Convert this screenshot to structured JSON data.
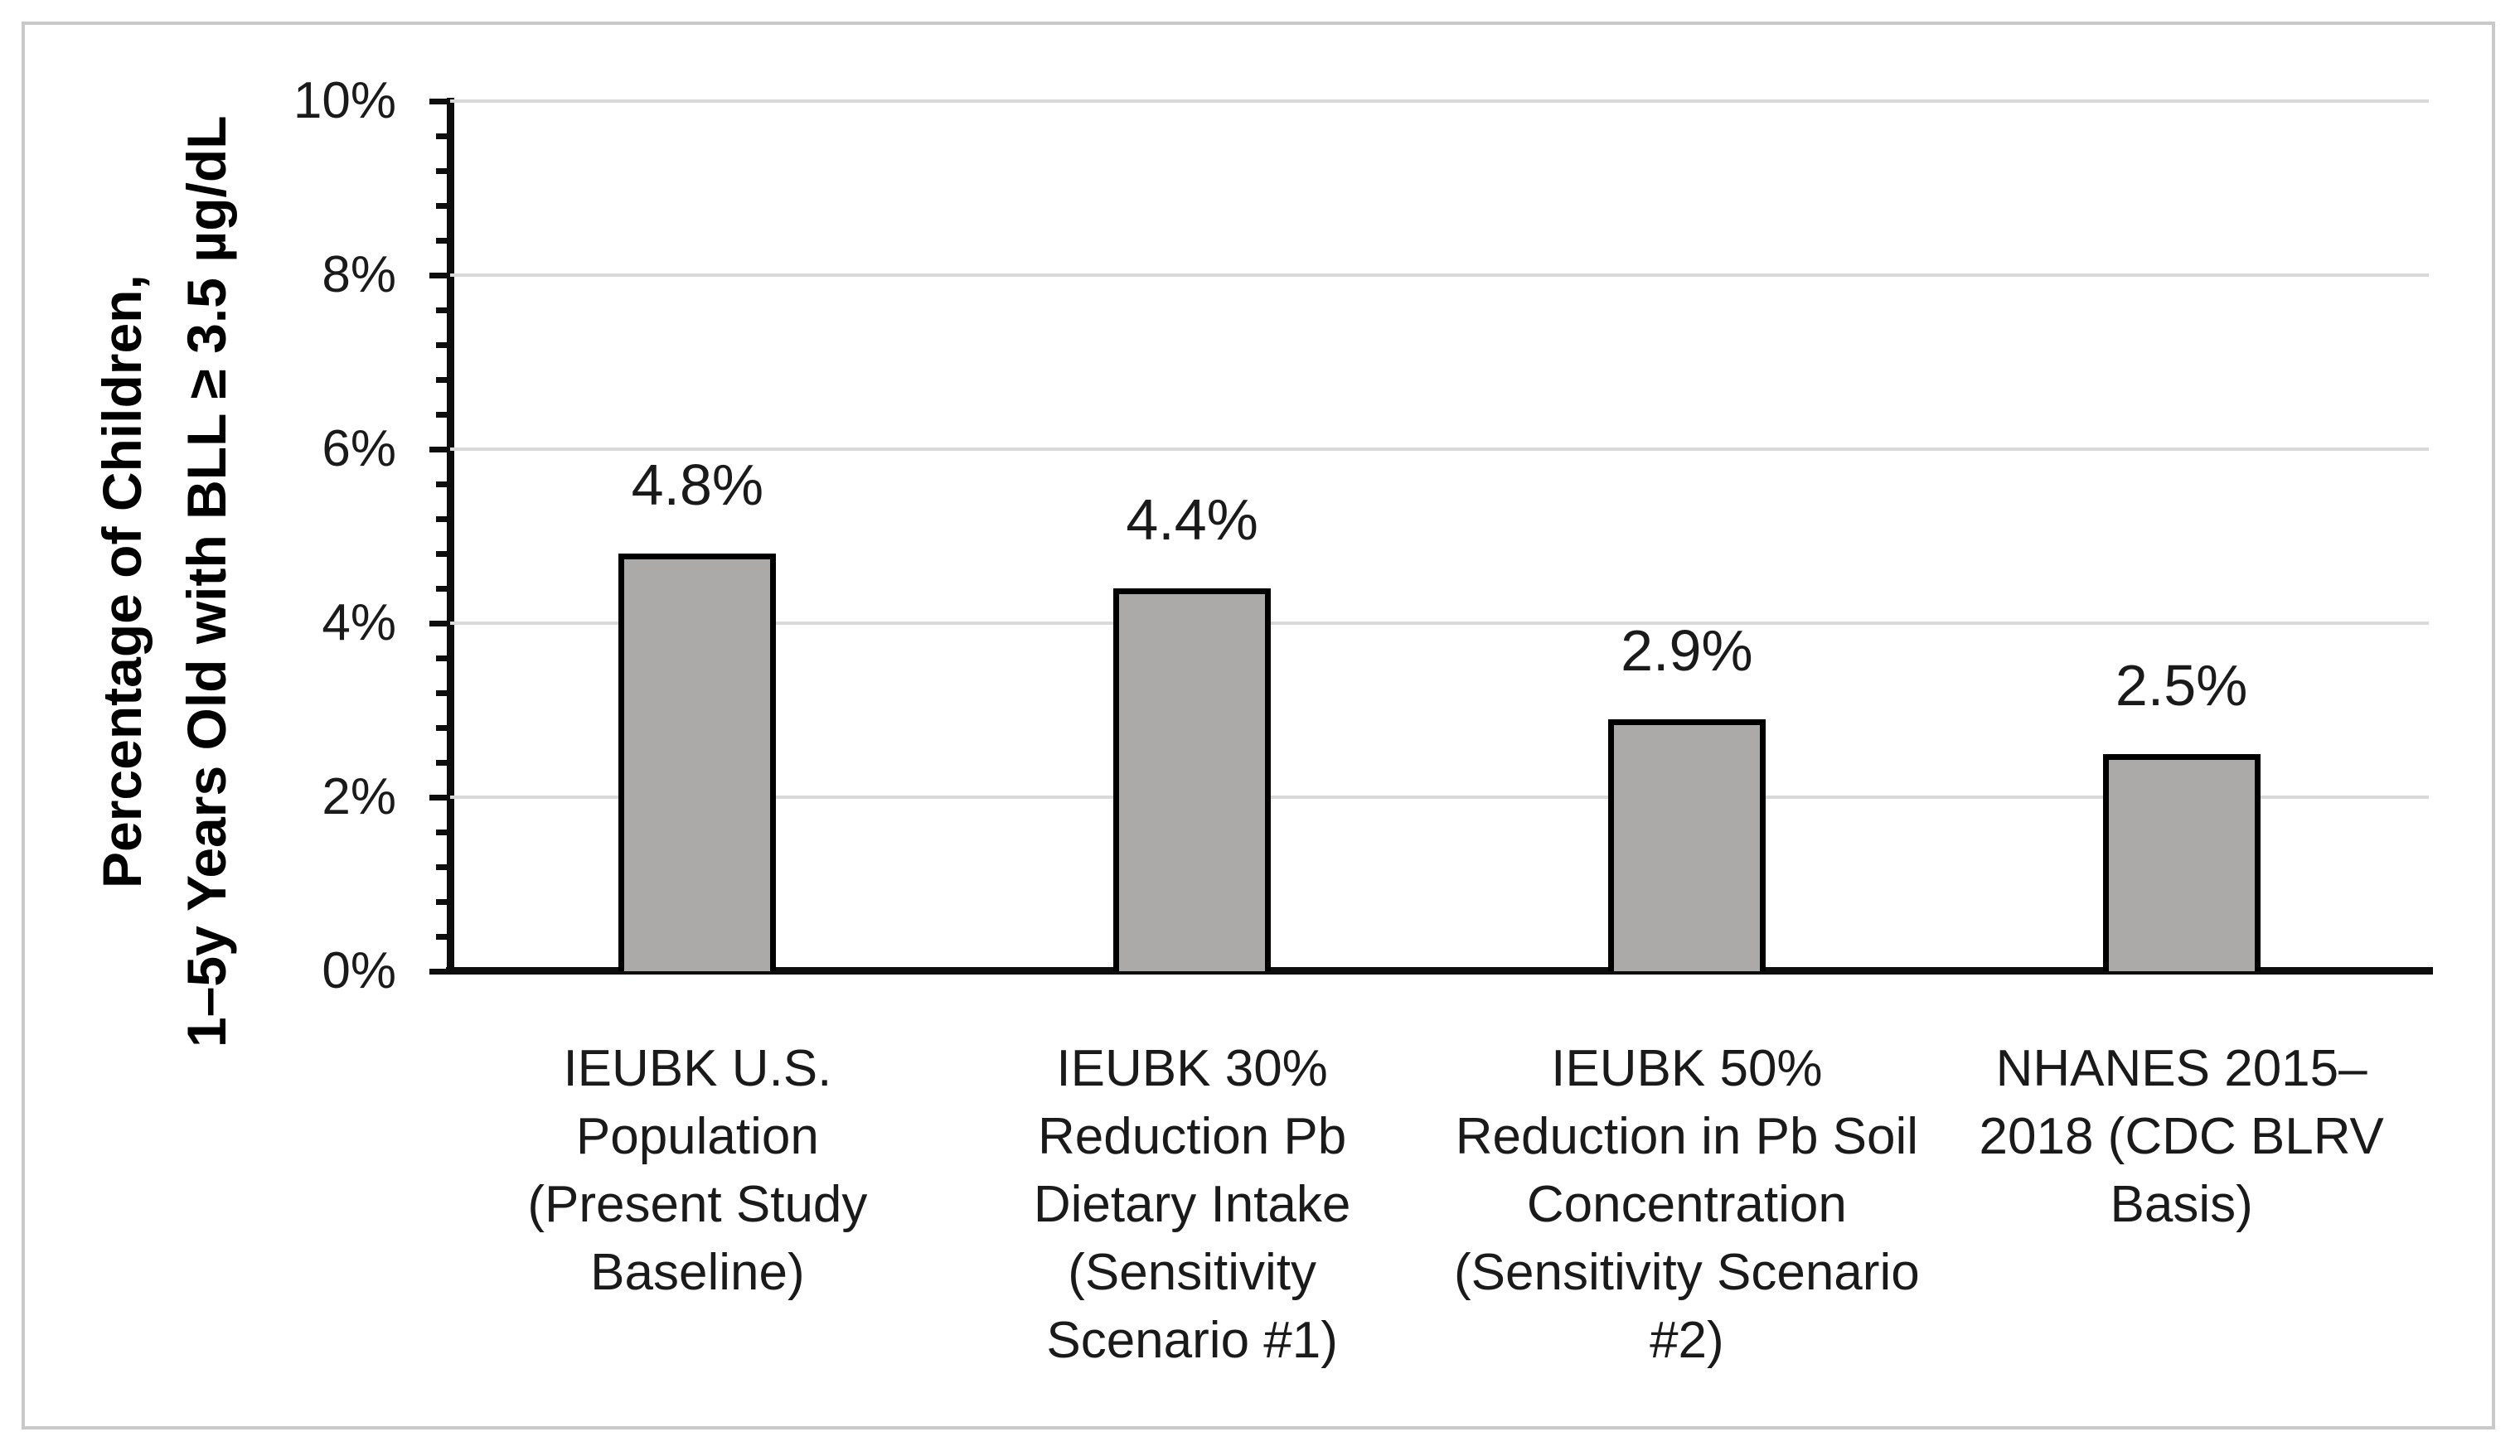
{
  "figure": {
    "background_color": "#ffffff",
    "border_color": "#c9c9c9"
  },
  "chart_data": {
    "type": "bar",
    "title": "",
    "categories": [
      "IEUBK U.S. Population (Present Study Baseline)",
      "IEUBK 30% Reduction Pb Dietary Intake (Sensitivity Scenario #1)",
      "IEUBK 50% Reduction in Pb Soil Concentration (Sensitivity Scenario #2)",
      "NHANES 2015–2018 (CDC BLRV Basis)"
    ],
    "category_lines": [
      [
        "IEUBK U.S.",
        "Population",
        "(Present Study",
        "Baseline)"
      ],
      [
        "IEUBK 30%",
        "Reduction Pb",
        "Dietary Intake",
        "(Sensitivity",
        "Scenario #1)"
      ],
      [
        "IEUBK 50%",
        "Reduction in Pb Soil",
        "Concentration",
        "(Sensitivity Scenario",
        "#2)"
      ],
      [
        "NHANES 2015–",
        "2018 (CDC BLRV",
        "Basis)"
      ]
    ],
    "values": [
      4.8,
      4.4,
      2.9,
      2.5
    ],
    "data_labels": [
      "4.8%",
      "4.4%",
      "2.9%",
      "2.5%"
    ],
    "xlabel": "",
    "ylabel": "Percentage of Children, 1–5y Years Old with BLL ≥ 3.5 µg/dL",
    "ylabel_lines": [
      "Percentage of Children,",
      "1–5y Years Old with BLL ≥ 3.5 µg/dL"
    ],
    "ylim": [
      0,
      10
    ],
    "y_major_step": 2,
    "y_minor_step": 0.4,
    "y_tick_labels": [
      "0%",
      "2%",
      "4%",
      "6%",
      "8%",
      "10%"
    ],
    "grid": true,
    "legend": false,
    "bar_fill": "#acaaa9",
    "bar_border_color": "#000000",
    "gridline_color": "#d9d9d9",
    "axis_color": "#0d0d0d",
    "text_color": "#1a1a1a"
  }
}
